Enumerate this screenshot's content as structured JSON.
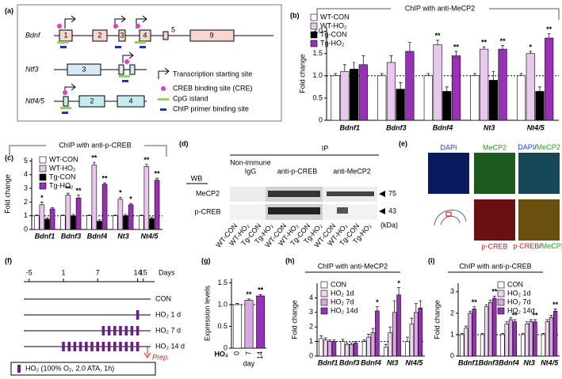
{
  "chart_data": [
    {
      "type": "bar",
      "panel": "(b)",
      "title": "ChIP with anti-MeCP2",
      "y_label": "Fold change",
      "categories": [
        "Bdnf1",
        "Bdnf3",
        "Bdnf4",
        "Nt3",
        "Nt4/5"
      ],
      "series": [
        {
          "name": "WT-CON",
          "color": "#ffffff",
          "values": [
            1,
            1,
            1,
            1,
            1
          ],
          "errors": [
            0.05,
            0.05,
            0.05,
            0.05,
            0.05
          ]
        },
        {
          "name": "WT-HO₂",
          "color": "#e8c8ec",
          "values": [
            1.1,
            1.3,
            1.7,
            1.6,
            1.5
          ],
          "errors": [
            0.15,
            0.15,
            0.1,
            0.05,
            0.05
          ],
          "stars": [
            null,
            null,
            "**",
            "**",
            "*"
          ]
        },
        {
          "name": "Tg-CON",
          "color": "#000000",
          "values": [
            1.15,
            0.7,
            0.65,
            0.9,
            0.65
          ],
          "errors": [
            0.15,
            0.15,
            0.1,
            0.2,
            0.1
          ]
        },
        {
          "name": "Tg-HO₂",
          "color": "#9b30b8",
          "values": [
            1.25,
            1.55,
            1.45,
            1.6,
            1.85
          ],
          "errors": [
            0.2,
            0.2,
            0.1,
            0.08,
            0.1
          ],
          "stars": [
            null,
            null,
            "**",
            "**",
            "**"
          ]
        }
      ],
      "ylim": [
        0,
        2.1
      ],
      "yticks": [
        0,
        0.5,
        {
          "value": 1,
          "label": "1.0"
        },
        1.5,
        {
          "value": 2,
          "label": "2.0"
        }
      ],
      "reference_line": 1
    },
    {
      "type": "bar",
      "panel": "(c)",
      "title": "ChIP with anti-p-CREB",
      "y_label": "Fold change",
      "categories": [
        "Bdnf1",
        "Bdnf3",
        "Bdnf4",
        "Nt3",
        "Nt4/5"
      ],
      "series": [
        {
          "name": "WT-CON",
          "color": "#ffffff",
          "values": [
            1,
            1,
            1,
            1,
            1
          ],
          "errors": [
            0.05,
            0.05,
            0.05,
            0.05,
            0.05
          ]
        },
        {
          "name": "WT-HO₂",
          "color": "#e8c8ec",
          "values": [
            1.8,
            2.5,
            4.7,
            2.2,
            4.6
          ],
          "errors": [
            0.2,
            0.15,
            0.2,
            0.15,
            0.15
          ],
          "stars": [
            "*",
            "**",
            "**",
            "*",
            "**"
          ]
        },
        {
          "name": "Tg-CON",
          "color": "#000000",
          "values": [
            0.75,
            1,
            0.6,
            1,
            0.8
          ],
          "errors": [
            0.1,
            0.1,
            0.1,
            0.1,
            0.1
          ]
        },
        {
          "name": "Tg-HO₂",
          "color": "#9b30b8",
          "values": [
            1.5,
            2.3,
            3.3,
            1.8,
            3.6
          ],
          "errors": [
            0.1,
            0.2,
            0.1,
            0.1,
            0.15
          ],
          "stars": [
            null,
            "**",
            "**",
            "*",
            "**"
          ]
        }
      ],
      "ylim": [
        0,
        5.2
      ],
      "yticks": [
        0,
        1,
        2,
        3,
        4,
        5
      ],
      "reference_line": 1
    },
    {
      "type": "bar",
      "panel": "(g)",
      "y_label": "Expression levels",
      "x_group": "HO₂",
      "x_label": "day",
      "categories": [
        "0",
        "7",
        "14"
      ],
      "values": [
        1,
        1.1,
        1.2
      ],
      "errors": [
        0.03,
        0.03,
        0.03
      ],
      "colors": [
        "#ffffff",
        "#d8a8e0",
        "#9b30b8"
      ],
      "stars": [
        null,
        "**",
        "**"
      ],
      "ylim": [
        0,
        1.6
      ],
      "yticks": [
        0,
        0.5,
        {
          "value": 1,
          "label": "1.0"
        },
        1.5
      ],
      "reference_line": 1
    },
    {
      "type": "bar",
      "panel": "(h)",
      "title": "ChIP with anti-MeCP2",
      "y_label": "Fold change",
      "categories": [
        "Bdnf1",
        "Bdnf3",
        "Bdnf4",
        "Nt3",
        "Nt4/5"
      ],
      "series": [
        {
          "name": "CON",
          "color": "#ffffff",
          "values": [
            1.2,
            1,
            1,
            0.6,
            1
          ],
          "errors": [
            0.2,
            0.15,
            0.1,
            0.2,
            0.3
          ]
        },
        {
          "name": "HO₂ 1d",
          "color": "#f0d5f0",
          "values": [
            1.1,
            0.8,
            1.3,
            1.6,
            2.2
          ],
          "errors": [
            0.15,
            0.1,
            0.2,
            0.4,
            0.4
          ]
        },
        {
          "name": "HO₂ 7d",
          "color": "#d8a8e0",
          "values": [
            1,
            0.8,
            1.6,
            3,
            3
          ],
          "errors": [
            0.1,
            0.1,
            0.3,
            0.8,
            0.6
          ]
        },
        {
          "name": "HO₂ 14d",
          "color": "#9b30b8",
          "values": [
            1,
            0.9,
            3.1,
            4.2,
            3.3
          ],
          "errors": [
            0.1,
            0.1,
            0.3,
            0.5,
            0.5
          ],
          "stars": [
            null,
            null,
            "*",
            "*",
            null
          ]
        }
      ],
      "ylim": [
        0,
        5
      ],
      "yticks": [
        0,
        1,
        2,
        3,
        4
      ],
      "reference_line": 1
    },
    {
      "type": "bar",
      "panel": "(i)",
      "title": "ChIP with anti-p-CREB",
      "y_label": "Fold change",
      "categories": [
        "Bdnf1",
        "Bdnf3",
        "Bdnf4",
        "Nt3",
        "Nt4/5"
      ],
      "series": [
        {
          "name": "CON",
          "color": "#ffffff",
          "values": [
            1,
            1,
            1,
            1,
            1
          ],
          "errors": [
            0.05,
            0.05,
            0.05,
            0.05,
            0.05
          ]
        },
        {
          "name": "HO₂ 1d",
          "color": "#f0d5f0",
          "values": [
            1.3,
            2.3,
            1.5,
            1.5,
            1.6
          ],
          "errors": [
            0.1,
            0.1,
            0.1,
            0.1,
            0.1
          ]
        },
        {
          "name": "HO₂ 7d",
          "color": "#d8a8e0",
          "values": [
            2,
            2.5,
            1.7,
            1.6,
            1.8
          ],
          "errors": [
            0.1,
            0.1,
            0.1,
            0.1,
            0.1
          ]
        },
        {
          "name": "HO₂ 14d",
          "color": "#9b30b8",
          "values": [
            2.2,
            2.7,
            1.6,
            1.6,
            2.1
          ],
          "errors": [
            0.1,
            0.1,
            0.1,
            0.1,
            0.1
          ],
          "stars": [
            "**",
            "**",
            "**",
            "**",
            "**"
          ]
        }
      ],
      "ylim": [
        0,
        3.4
      ],
      "yticks": [
        0,
        1,
        2,
        3
      ],
      "reference_line": 1
    }
  ],
  "panel_a": {
    "label": "(a)",
    "genes": [
      "Bdnf",
      "Ntf3",
      "Ntf4/5"
    ],
    "bdnf_exons": [
      "1",
      "2",
      "3",
      "4",
      "5",
      "9"
    ],
    "ntf3_exons": [
      "3"
    ],
    "ntf45_exons": [
      "2",
      "4"
    ],
    "legend": [
      "Transcription starting site",
      "CREB binding site (CRE)",
      "CpG island",
      "ChIP primer binding site"
    ]
  },
  "panel_d": {
    "label": "(d)",
    "ip": "IP",
    "wb": "WB",
    "group_1": [
      "Non-immune",
      "IgG"
    ],
    "group_2": "anti-p-CREB",
    "group_3": "anti-MeCP2",
    "rows": [
      "MeCP2",
      "p-CREB"
    ],
    "markers": [
      75,
      43
    ],
    "unit": "(kDa)",
    "lanes": [
      "WT-CON",
      "WT-HO₂",
      "Tg-CON",
      "Tg-HO₂"
    ]
  },
  "panel_e": {
    "label": "(e)",
    "dapi": "DAPI",
    "mecp2": "MeCP2",
    "pcreb": "p-CREB",
    "slash": "/"
  },
  "panel_f": {
    "label": "(f)",
    "ticks": [
      -5,
      1,
      7,
      14,
      15
    ],
    "unit": "Days",
    "rows": [
      {
        "label": "CON",
        "days": []
      },
      {
        "label": "HO₂ 1 d",
        "days": [
          14
        ]
      },
      {
        "label": "HO₂ 7 d",
        "days": [
          8,
          9,
          10,
          11,
          12,
          13,
          14
        ]
      },
      {
        "label": "HO₂ 14 d",
        "days": [
          1,
          2,
          3,
          4,
          5,
          6,
          7,
          8,
          9,
          10,
          11,
          12,
          13,
          14
        ]
      }
    ],
    "prep": "Prep.",
    "legend": "HO₂ (100% O₂, 2.0 ATA, 1h)"
  }
}
